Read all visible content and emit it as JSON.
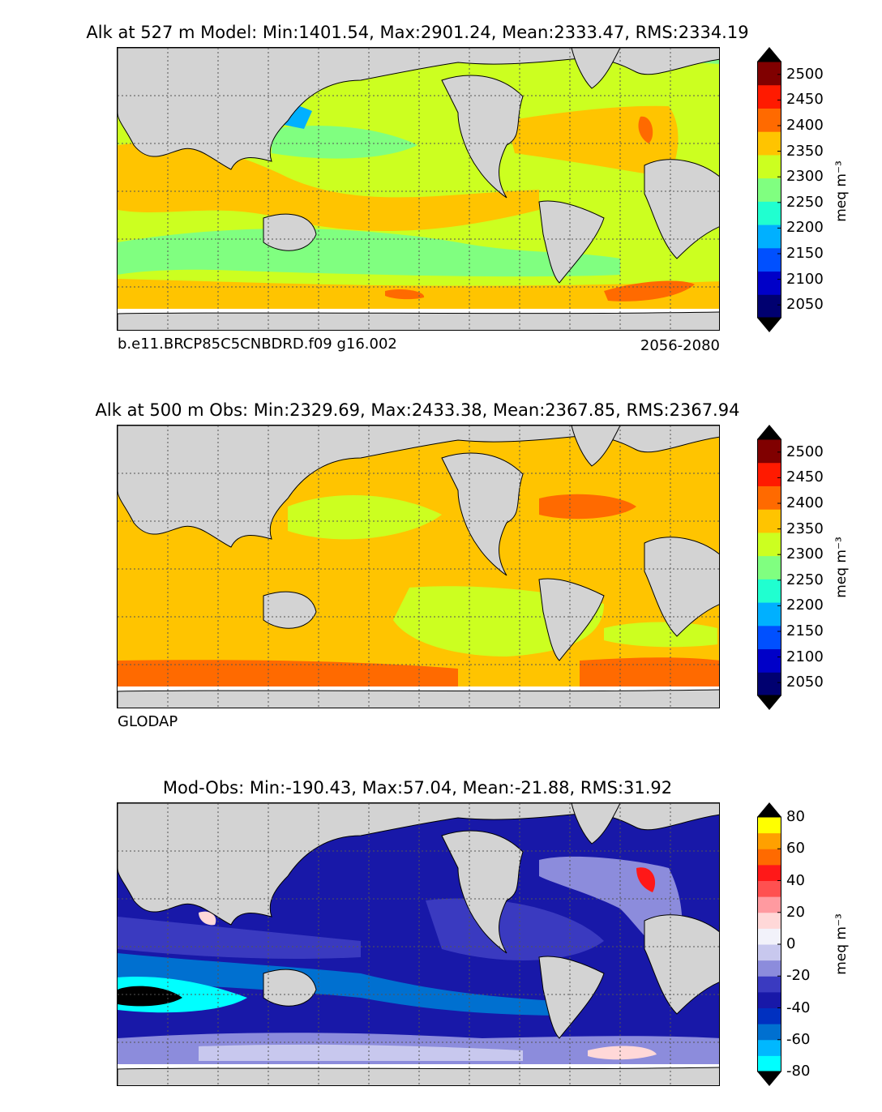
{
  "chart_data": [
    {
      "type": "heatmap",
      "title": "Alk at 527 m Model: Min:1401.54, Max:2901.24, Mean:2333.47, RMS:2334.19",
      "left_label": "b.e11.BRCP85C5CNBDRD.f09 g16.002",
      "right_label": "2056-2080",
      "colorbar_label": "meq m⁻³",
      "colorbar_ticks": [
        "2050",
        "2100",
        "2150",
        "2200",
        "2250",
        "2300",
        "2350",
        "2400",
        "2450",
        "2500"
      ],
      "colorbar_range": [
        2025,
        2525
      ],
      "colorbar_colors": [
        "#000070",
        "#0000c8",
        "#0050ff",
        "#00b0ff",
        "#20ffd0",
        "#80ff80",
        "#ccff20",
        "#ffc400",
        "#ff6a00",
        "#ff1a00",
        "#800000"
      ],
      "stats": {
        "min": 1401.54,
        "max": 2901.24,
        "mean": 2333.47,
        "rms": 2334.19
      },
      "depth_m": 527
    },
    {
      "type": "heatmap",
      "title": "Alk at 500 m Obs: Min:2329.69, Max:2433.38, Mean:2367.85, RMS:2367.94",
      "left_label": "GLODAP",
      "right_label": "",
      "colorbar_label": "meq m⁻³",
      "colorbar_ticks": [
        "2050",
        "2100",
        "2150",
        "2200",
        "2250",
        "2300",
        "2350",
        "2400",
        "2450",
        "2500"
      ],
      "colorbar_range": [
        2025,
        2525
      ],
      "colorbar_colors": [
        "#000070",
        "#0000c8",
        "#0050ff",
        "#00b0ff",
        "#20ffd0",
        "#80ff80",
        "#ccff20",
        "#ffc400",
        "#ff6a00",
        "#ff1a00",
        "#800000"
      ],
      "stats": {
        "min": 2329.69,
        "max": 2433.38,
        "mean": 2367.85,
        "rms": 2367.94
      },
      "depth_m": 500
    },
    {
      "type": "heatmap",
      "title": "Mod-Obs: Min:-190.43, Max:57.04, Mean:-21.88, RMS:31.92",
      "left_label": "",
      "right_label": "",
      "colorbar_label": "meq m⁻³",
      "colorbar_ticks": [
        "-80",
        "-60",
        "-40",
        "-20",
        "0",
        "20",
        "40",
        "60",
        "80"
      ],
      "colorbar_range": [
        -80,
        80
      ],
      "colorbar_colors": [
        "#00ffff",
        "#00b8ff",
        "#0070d0",
        "#0030c0",
        "#1818a8",
        "#3a3ac0",
        "#8c8cdc",
        "#c8c8ee",
        "#f2f2fa",
        "#ffd8d8",
        "#ff9aa0",
        "#ff5050",
        "#ff1818",
        "#ff6a00",
        "#ffa000",
        "#ffff00"
      ],
      "stats": {
        "min": -190.43,
        "max": 57.04,
        "mean": -21.88,
        "rms": 31.92
      }
    }
  ],
  "colors": {
    "land": "#d3d3d3",
    "background": "#ffffff",
    "grid": "#555555"
  }
}
